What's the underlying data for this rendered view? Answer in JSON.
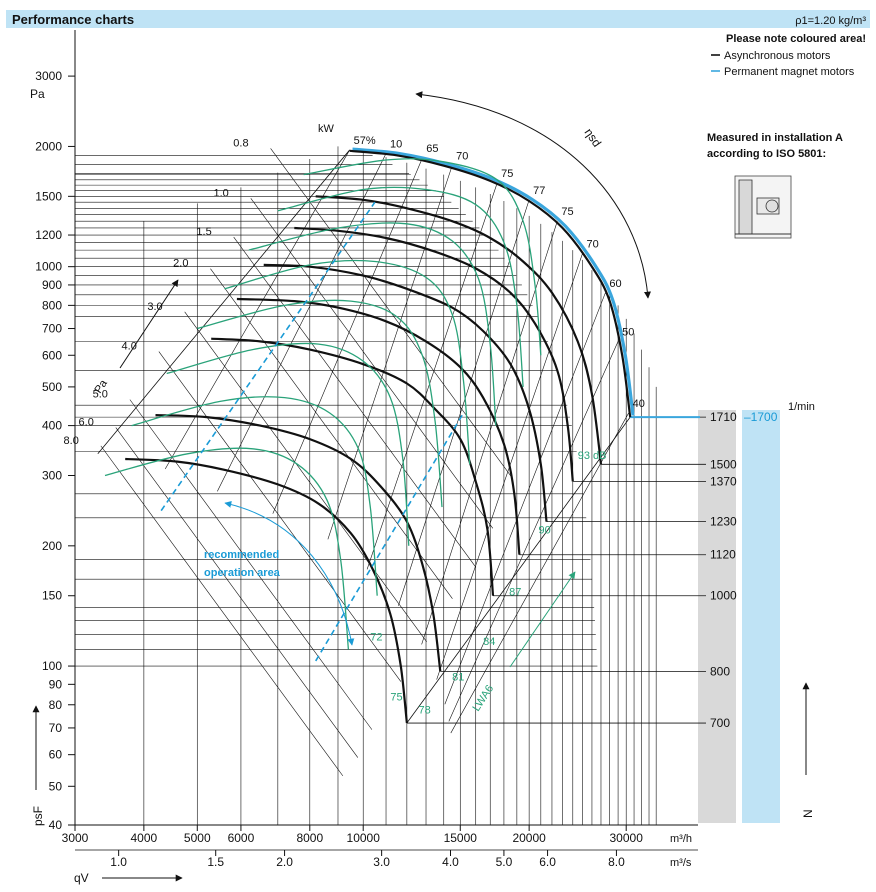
{
  "header": {
    "title": "Performance charts",
    "density": "ρ1=1.20 kg/m³",
    "note": "Please note coloured area!",
    "legend": [
      {
        "label": "Asynchronous motors",
        "color": "#111111"
      },
      {
        "label": "Permanent magnet motors",
        "color": "#3aa6dd"
      }
    ],
    "measured": [
      "Measured in installation A",
      "according to ISO 5801:"
    ]
  },
  "colors": {
    "header_band": "#bfe3f5",
    "grid": "#111111",
    "sound": "#2aa37a",
    "efficiency_outline": "#3aa6dd",
    "recommended": "#1a9bd6",
    "grey_band": "#d9d9d9",
    "blue_band": "#bfe3f5"
  },
  "chart_data": {
    "type": "line",
    "x_axis_primary": {
      "unit": "m³/h",
      "scale": "log",
      "range": [
        3000,
        40000
      ],
      "ticks": [
        3000,
        4000,
        5000,
        6000,
        8000,
        10000,
        15000,
        20000,
        30000
      ],
      "tick_labels": [
        "3000",
        "4000",
        "5000",
        "6000",
        "8000",
        "10000",
        "15000",
        "20000",
        "30000"
      ]
    },
    "x_axis_secondary": {
      "unit": "m³/s",
      "symbol": "qV",
      "ticks": [
        1.0,
        1.5,
        2.0,
        3.0,
        4.0,
        5.0,
        6.0,
        8.0
      ],
      "tick_labels": [
        "1.0",
        "1.5",
        "2.0",
        "3.0",
        "4.0",
        "5.0",
        "6.0",
        "8.0"
      ]
    },
    "y_axis": {
      "unit": "Pa",
      "symbol": "psF",
      "scale": "log",
      "range": [
        40,
        3500
      ],
      "ticks": [
        40,
        50,
        60,
        70,
        80,
        90,
        100,
        150,
        200,
        300,
        400,
        500,
        600,
        700,
        800,
        900,
        1000,
        1200,
        1500,
        2000,
        3000
      ],
      "tick_labels": [
        "40",
        "50",
        "60",
        "70",
        "80",
        "90",
        "100",
        "150",
        "200",
        "300",
        "400",
        "500",
        "600",
        "700",
        "800",
        "900",
        "1000",
        "1200",
        "1500",
        "2000",
        "3000"
      ]
    },
    "speed_axis": {
      "unit": "1/min",
      "symbol": "N",
      "speeds": [
        1710,
        1500,
        1370,
        1230,
        1120,
        1000,
        800,
        700
      ],
      "labels": [
        "1710",
        "1500",
        "1370",
        "1230",
        "1120",
        "1000",
        "800",
        "700"
      ],
      "pm_speed": "1700"
    },
    "power_axis": {
      "unit": "kW",
      "symbol": "Pa",
      "values": [
        0.8,
        1.0,
        1.5,
        2.0,
        3.0,
        4.0,
        5.0,
        6.0,
        8.0
      ],
      "labels": [
        "0.8",
        "1.0",
        "1.5",
        "2.0",
        "3.0",
        "4.0",
        "5.0",
        "6.0",
        "8.0"
      ]
    },
    "efficiency_axis": {
      "symbol": "ηsd",
      "labels": [
        "57%",
        "10",
        "65",
        "70",
        "75",
        "77",
        "75",
        "70",
        "60",
        "50",
        "40"
      ]
    },
    "sound_axis": {
      "symbol": "LWA6",
      "labels": [
        "93 dB",
        "90",
        "87",
        "84",
        "81",
        "78",
        "75",
        "72"
      ]
    },
    "recommended_area": {
      "label": [
        "recommended",
        "operation area"
      ]
    },
    "speed_curves": [
      {
        "speed": 1710,
        "points": [
          [
            9450,
            1950
          ],
          [
            11500,
            1900
          ],
          [
            14000,
            1790
          ],
          [
            17000,
            1640
          ],
          [
            20000,
            1460
          ],
          [
            23000,
            1250
          ],
          [
            26000,
            1000
          ],
          [
            28000,
            820
          ],
          [
            29500,
            600
          ],
          [
            30500,
            420
          ]
        ]
      },
      {
        "speed": 1500,
        "points": [
          [
            8200,
            1500
          ],
          [
            10000,
            1470
          ],
          [
            12000,
            1400
          ],
          [
            14500,
            1300
          ],
          [
            17000,
            1180
          ],
          [
            19500,
            1030
          ],
          [
            22000,
            860
          ],
          [
            24500,
            650
          ],
          [
            26000,
            480
          ],
          [
            27000,
            320
          ]
        ]
      },
      {
        "speed": 1370,
        "points": [
          [
            7500,
            1250
          ],
          [
            9000,
            1230
          ],
          [
            11000,
            1180
          ],
          [
            13500,
            1090
          ],
          [
            16000,
            990
          ],
          [
            18500,
            860
          ],
          [
            20500,
            720
          ],
          [
            22500,
            550
          ],
          [
            23500,
            400
          ],
          [
            24000,
            290
          ]
        ]
      },
      {
        "speed": 1230,
        "points": [
          [
            6600,
            1010
          ],
          [
            8000,
            1000
          ],
          [
            10000,
            950
          ],
          [
            12000,
            880
          ],
          [
            14500,
            790
          ],
          [
            16500,
            690
          ],
          [
            18500,
            570
          ],
          [
            20000,
            440
          ],
          [
            21000,
            320
          ],
          [
            21500,
            230
          ]
        ]
      },
      {
        "speed": 1120,
        "points": [
          [
            5900,
            830
          ],
          [
            7500,
            820
          ],
          [
            9000,
            790
          ],
          [
            11000,
            730
          ],
          [
            13000,
            650
          ],
          [
            15000,
            560
          ],
          [
            16500,
            470
          ],
          [
            18000,
            360
          ],
          [
            18800,
            270
          ],
          [
            19200,
            190
          ]
        ]
      },
      {
        "speed": 1000,
        "points": [
          [
            5300,
            660
          ],
          [
            6500,
            650
          ],
          [
            8000,
            620
          ],
          [
            10000,
            570
          ],
          [
            12000,
            510
          ],
          [
            13500,
            440
          ],
          [
            15000,
            370
          ],
          [
            16000,
            290
          ],
          [
            16800,
            220
          ],
          [
            17200,
            150
          ]
        ]
      },
      {
        "speed": 800,
        "points": [
          [
            4200,
            425
          ],
          [
            5200,
            420
          ],
          [
            6500,
            400
          ],
          [
            8000,
            370
          ],
          [
            9500,
            330
          ],
          [
            10800,
            280
          ],
          [
            12000,
            230
          ],
          [
            12800,
            180
          ],
          [
            13400,
            135
          ],
          [
            13800,
            97
          ]
        ]
      },
      {
        "speed": 700,
        "points": [
          [
            3700,
            330
          ],
          [
            4600,
            325
          ],
          [
            5600,
            310
          ],
          [
            7000,
            285
          ],
          [
            8300,
            255
          ],
          [
            9500,
            215
          ],
          [
            10400,
            175
          ],
          [
            11200,
            135
          ],
          [
            11700,
            100
          ],
          [
            12000,
            72
          ]
        ]
      }
    ]
  }
}
